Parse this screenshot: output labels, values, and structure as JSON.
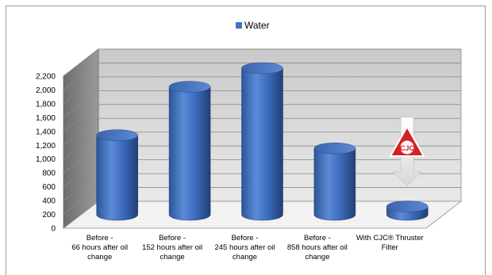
{
  "chart_data": {
    "type": "bar",
    "style": "3d-cylinder",
    "legend": {
      "placement": "top-center",
      "entries": [
        "Water"
      ]
    },
    "series": [
      {
        "name": "Water",
        "color": "#4472C4",
        "values": [
          1150,
          1850,
          2120,
          960,
          120
        ]
      }
    ],
    "categories": [
      [
        "Before -",
        "66 hours after oil",
        "change"
      ],
      [
        "Before -",
        "152 hours after oil",
        "change"
      ],
      [
        "Before -",
        "245 hours after oil",
        "change"
      ],
      [
        "Before -",
        "858 hours after oil",
        "change"
      ],
      [
        "With CJC® Thruster",
        "Filter"
      ]
    ],
    "y_ticks": [
      "0",
      "200",
      "400",
      "600",
      "800",
      "1,000",
      "1,200",
      "1,400",
      "1,600",
      "1,800",
      "2,000",
      "2,200"
    ],
    "ylim": [
      0,
      2200
    ],
    "grid": true,
    "annotation": {
      "logo_text": "CJC",
      "arrow": "down",
      "category_index": 4
    }
  }
}
